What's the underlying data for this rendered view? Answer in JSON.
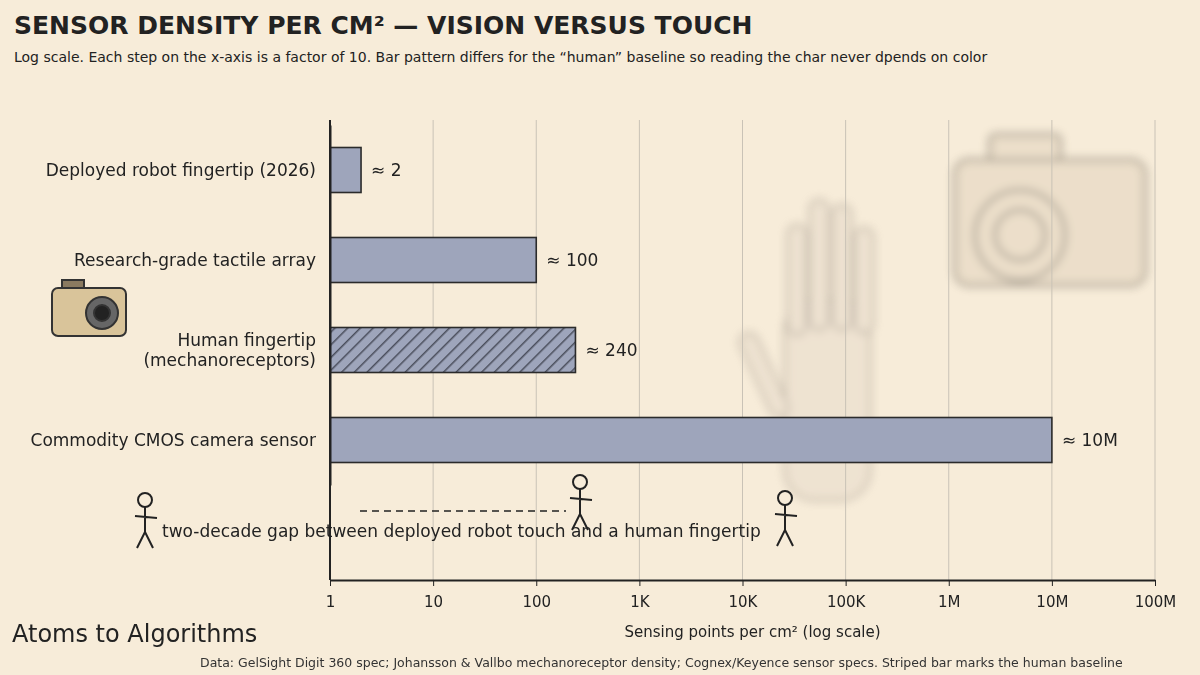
{
  "chart_data": {
    "type": "bar",
    "orientation": "horizontal",
    "title": "SENSOR DENSITY PER CM² — VISION VERSUS TOUCH",
    "subtitle": "Log scale. Each step on the x-axis is a factor of 10. Bar pattern differs for the “human” baseline so reading the char never dpends on color",
    "xlabel": "Sensing points per cm² (log scale)",
    "annotation": "two-decade gap between deployed robot touch and a human fingertip",
    "brand": "Atoms to Algorithms",
    "source": "Data: GelSight Digit 360 spec; Johansson & Vallbo mechanoreceptor density; Cognex/Keyence sensor specs. Striped bar marks the human baseline",
    "categories": [
      "Deployed robot fingertip (2026)",
      "Research-grade tactile array",
      "Human fingertip\n(mechanoreceptors)",
      "Commodity CMOS camera sensor"
    ],
    "values": [
      2,
      100,
      240,
      10000000
    ],
    "value_labels": [
      "≈ 2",
      "≈ 100",
      "≈ 240",
      "≈ 10M"
    ],
    "data_labels": true,
    "colors": [
      "#9ea5bb",
      "#9ea5bb",
      "#4a4e5c",
      "#9ea5bb"
    ],
    "log": "x",
    "grid": true,
    "xlim": [
      1,
      100000000
    ],
    "xticks": [
      1,
      10,
      100,
      {
        "value": 1000,
        "label": "1K"
      },
      {
        "value": 10000,
        "label": "10K"
      },
      {
        "value": 100000,
        "label": "100K"
      },
      {
        "value": 1000000,
        "label": "1M"
      },
      {
        "value": 10000000,
        "label": "10M"
      },
      {
        "value": 100000000,
        "label": "100M"
      }
    ]
  }
}
